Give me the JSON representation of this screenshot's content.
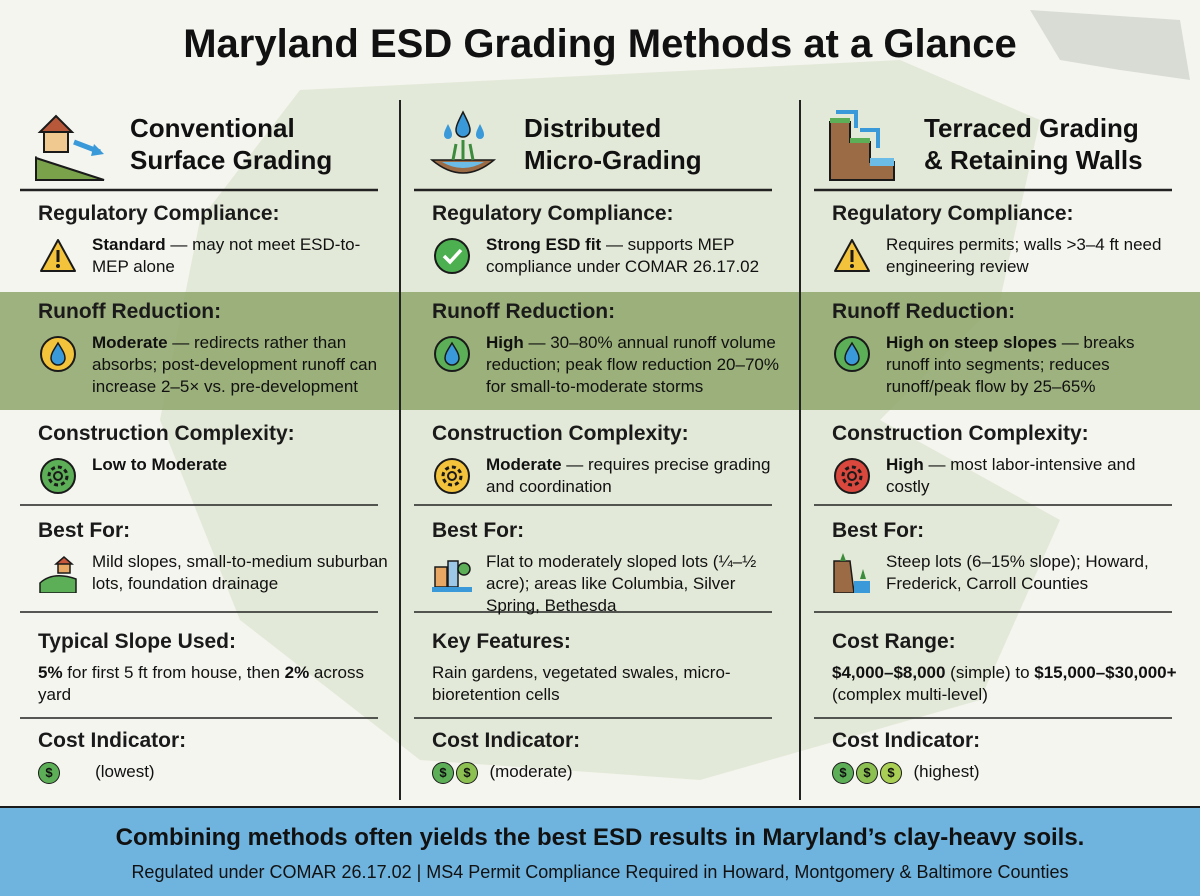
{
  "header": {
    "title": "Maryland ESD Grading Methods at a Glance"
  },
  "cost_symbol": "$",
  "columns": [
    {
      "icon": "house-slope",
      "title": [
        "Conventional",
        "Surface Grading"
      ],
      "sections": [
        {
          "label": "Regulatory Compliance:",
          "icon": "warning",
          "body": [
            {
              "t": "Standard",
              "b": true
            },
            {
              "t": " — may not meet ESD-to-MEP alone"
            }
          ]
        },
        {
          "label": "Runoff Reduction:",
          "icon": "drop-yellow",
          "body": [
            {
              "t": "Moderate",
              "b": true
            },
            {
              "t": " — redirects rather than absorbs; post-development runoff can increase 2–5× vs. pre-development"
            }
          ]
        },
        {
          "label": "Construction Complexity:",
          "icon": "gear-green",
          "body": [
            {
              "t": "Low to Moderate",
              "b": true
            }
          ]
        },
        {
          "label": "Best For:",
          "icon": "landscape",
          "body": [
            {
              "t": "Mild slopes, small-to-medium suburban lots, foundation drainage"
            }
          ]
        },
        {
          "label": "Typical Slope Used:",
          "body": [
            {
              "t": "5%",
              "b": true
            },
            {
              "t": " for first 5 ft from house, then "
            },
            {
              "t": "2%",
              "b": true
            },
            {
              "t": " across yard"
            }
          ]
        },
        {
          "label": "Cost Indicator:",
          "coins": 1,
          "body": [
            {
              "t": "(lowest)"
            }
          ]
        }
      ]
    },
    {
      "icon": "droplets",
      "title": [
        "Distributed",
        "Micro-Grading"
      ],
      "sections": [
        {
          "label": "Regulatory Compliance:",
          "icon": "check",
          "body": [
            {
              "t": "Strong ESD fit",
              "b": true
            },
            {
              "t": " — supports MEP compliance under COMAR 26.17.02"
            }
          ]
        },
        {
          "label": "Runoff Reduction:",
          "icon": "drop-green",
          "body": [
            {
              "t": "High",
              "b": true
            },
            {
              "t": " — 30–80% annual runoff volume reduction; peak flow reduction 20–70% for small-to-moderate storms"
            }
          ]
        },
        {
          "label": "Construction Complexity:",
          "icon": "gear-yellow",
          "body": [
            {
              "t": "Moderate",
              "b": true
            },
            {
              "t": " — requires precise grading and coordination"
            }
          ]
        },
        {
          "label": "Best For:",
          "icon": "city",
          "body": [
            {
              "t": "Flat to moderately sloped lots (¼–½ acre); areas like Columbia, Silver Spring, Bethesda"
            }
          ]
        },
        {
          "label": "Key Features:",
          "body": [
            {
              "t": "Rain gardens, vegetated swales, micro-bioretention cells"
            }
          ]
        },
        {
          "label": "Cost Indicator:",
          "coins": 2,
          "body": [
            {
              "t": "(moderate)"
            }
          ]
        }
      ]
    },
    {
      "icon": "terraces",
      "title": [
        "Terraced Grading",
        "& Retaining Walls"
      ],
      "sections": [
        {
          "label": "Regulatory Compliance:",
          "icon": "warning",
          "body": [
            {
              "t": "Requires permits; walls >3–4 ft need engineering review"
            }
          ]
        },
        {
          "label": "Runoff Reduction:",
          "icon": "drop-green",
          "body": [
            {
              "t": "High on steep slopes",
              "b": true
            },
            {
              "t": " — breaks runoff into segments; reduces runoff/peak flow by 25–65%"
            }
          ]
        },
        {
          "label": "Construction Complexity:",
          "icon": "gear-red",
          "body": [
            {
              "t": "High",
              "b": true
            },
            {
              "t": " — most labor-intensive and costly"
            }
          ]
        },
        {
          "label": "Best For:",
          "icon": "cliff",
          "body": [
            {
              "t": "Steep lots (6–15% slope); Howard, Frederick, Carroll Counties"
            }
          ]
        },
        {
          "label": "Cost Range:",
          "body": [
            {
              "t": "$4,000–$8,000",
              "b": true
            },
            {
              "t": " (simple) to "
            },
            {
              "t": "$15,000–$30,000+",
              "b": true
            },
            {
              "t": " (complex multi-level)"
            }
          ]
        },
        {
          "label": "Cost Indicator:",
          "coins": 3,
          "body": [
            {
              "t": "(highest)"
            }
          ]
        }
      ]
    }
  ],
  "footer": {
    "headline": "Combining methods often yields the best ESD results in Maryland’s clay-heavy soils.",
    "note": "Regulated under COMAR 26.17.02 | MS4 Permit Compliance Required in Howard, Montgomery & Baltimore Counties"
  }
}
